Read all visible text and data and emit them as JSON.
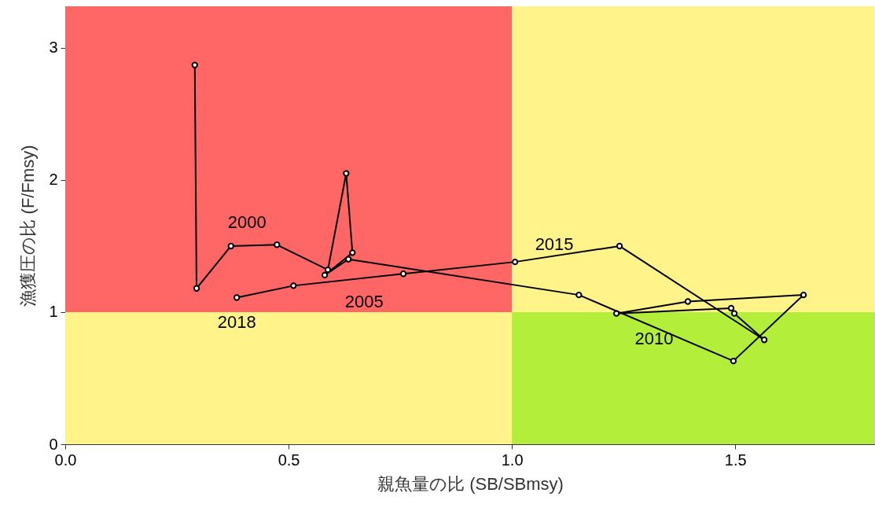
{
  "chart_data": {
    "type": "line",
    "xlabel": "親魚量の比 (SB/SBmsy)",
    "ylabel": "漁獲圧の比 (F/Fmsy)",
    "x": [
      0.29,
      0.294,
      0.371,
      0.474,
      0.588,
      0.629,
      0.643,
      0.581,
      0.634,
      1.15,
      1.496,
      1.653,
      1.394,
      1.234,
      1.491,
      1.498,
      1.565,
      1.241,
      1.007,
      0.757,
      0.511,
      0.384
    ],
    "series": [
      {
        "color": "#000000",
        "values": [
          2.87,
          1.18,
          1.5,
          1.51,
          1.32,
          2.05,
          1.45,
          1.28,
          1.4,
          1.13,
          0.63,
          1.13,
          1.08,
          0.99,
          1.03,
          0.99,
          0.79,
          1.5,
          1.38,
          1.29,
          1.2,
          1.11
        ]
      }
    ],
    "marker": "circle",
    "line_style": "solid",
    "xlim": [
      0,
      1.813
    ],
    "xticks": [
      {
        "value": 0,
        "label": "0.0"
      },
      0.5,
      {
        "value": 1,
        "label": "1.0"
      },
      1.5
    ],
    "ylim": [
      0,
      3.315
    ],
    "yticks": [
      0,
      1,
      2,
      3
    ],
    "bands": [
      {
        "axis": "x",
        "from": 0,
        "to": 1,
        "color": "#ff6666"
      },
      {
        "axis": "y",
        "from": 0,
        "to": 1,
        "color": "#fff38a"
      },
      {
        "axis": "x",
        "from": 1,
        "to": 1.813,
        "color": "#fff38a"
      },
      {
        "axis": "y",
        "from": 0,
        "to": 1,
        "color": "#b3ee3a"
      }
    ],
    "annotations": [
      {
        "text": "2000",
        "x": 0.474,
        "y": 1.51
      },
      {
        "text": "2005",
        "x": 0.634,
        "y": 1.4
      },
      {
        "text": "2010",
        "x": 1.234,
        "y": 0.99
      },
      {
        "text": "2015",
        "x": 1.007,
        "y": 1.38
      },
      {
        "text": "2018",
        "x": 0.384,
        "y": 1.11
      }
    ]
  }
}
